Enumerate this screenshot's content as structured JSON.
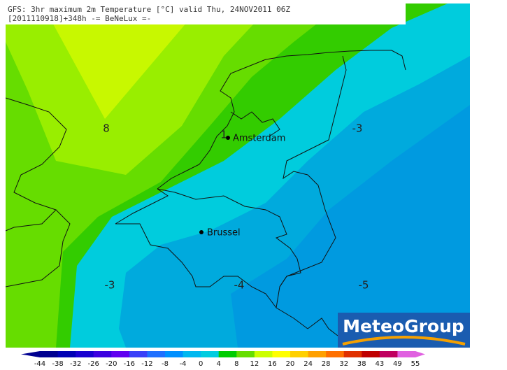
{
  "header": {
    "line1": "GFS: 3hr maximum 2m Temperature [°C] valid Thu, 24NOV2011 06Z",
    "line2": "[2011110918]+348h -= BeNeLux =-"
  },
  "cities": [
    {
      "label": "Amsterdam"
    },
    {
      "label": "Brussel"
    }
  ],
  "contour_labels": [
    {
      "text": "8"
    },
    {
      "text": "1"
    },
    {
      "text": "-3"
    },
    {
      "text": "-3"
    },
    {
      "text": "-4"
    },
    {
      "text": "-5"
    }
  ],
  "logo": {
    "text": "MeteoGroup"
  },
  "colorbar": {
    "ticks": [
      -44,
      -38,
      -32,
      -26,
      -20,
      -16,
      -12,
      -8,
      -4,
      0,
      4,
      8,
      12,
      16,
      20,
      24,
      28,
      32,
      38,
      43,
      49,
      55
    ],
    "colors": [
      "#000090",
      "#0000b4",
      "#1800d0",
      "#3c00e0",
      "#6000f0",
      "#3a40f8",
      "#2070ff",
      "#0090ff",
      "#00b8f0",
      "#00cce0",
      "#00cc00",
      "#66dd00",
      "#ccff00",
      "#ffff00",
      "#ffd000",
      "#ffa000",
      "#ff7000",
      "#e03000",
      "#c00000",
      "#c00060",
      "#e060e0"
    ]
  }
}
